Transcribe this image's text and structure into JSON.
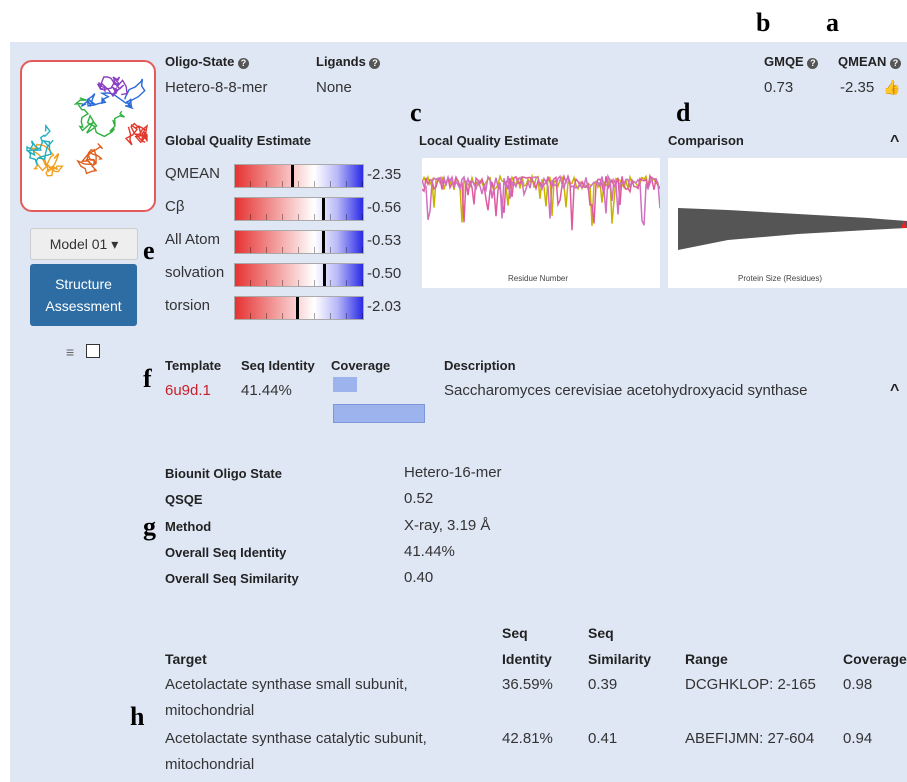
{
  "annotations": [
    "a",
    "b",
    "c",
    "d",
    "e",
    "f",
    "g",
    "h"
  ],
  "model_summary": {
    "oligo_state_label": "Oligo-State",
    "oligo_state": "Hetero-8-8-mer",
    "ligands_label": "Ligands",
    "ligands": "None",
    "gmqe_label": "GMQE",
    "gmqe": "0.73",
    "qmean_label": "QMEAN",
    "qmean": "-2.35"
  },
  "global_quality": {
    "title": "Global Quality Estimate",
    "rows": [
      {
        "name": "QMEAN",
        "value": "-2.35"
      },
      {
        "name": "Cβ",
        "value": "-0.56"
      },
      {
        "name": "All Atom",
        "value": "-0.53"
      },
      {
        "name": "solvation",
        "value": "-0.50"
      },
      {
        "name": "torsion",
        "value": "-2.03"
      }
    ]
  },
  "local_quality": {
    "title": "Local Quality Estimate",
    "x_label": "Residue Number"
  },
  "comparison": {
    "title": "Comparison",
    "x_label": "Protein Size (Residues)"
  },
  "sidebar": {
    "model_button": "Model 01",
    "assessment_button": "Structure Assessment"
  },
  "template": {
    "headers": [
      "Template",
      "Seq Identity",
      "Coverage",
      "Description"
    ],
    "id": "6u9d.1",
    "seq_identity": "41.44%",
    "description": "Saccharomyces cerevisiae acetohydroxyacid synthase"
  },
  "details": {
    "rows": [
      [
        "Biounit Oligo State",
        "Hetero-16-mer"
      ],
      [
        "QSQE",
        "0.52"
      ],
      [
        "Method",
        "X-ray, 3.19 Å"
      ],
      [
        "Overall Seq Identity",
        "41.44%"
      ],
      [
        "Overall Seq Similarity",
        "0.40"
      ]
    ]
  },
  "targets": {
    "headers": [
      [
        "Target"
      ],
      [
        "Seq",
        "Identity"
      ],
      [
        "Seq",
        "Similarity"
      ],
      [
        "Range"
      ],
      [
        "Coverage"
      ]
    ],
    "rows": [
      [
        [
          "Acetolactate synthase small subunit,",
          "mitochondrial"
        ],
        "36.59%",
        "0.39",
        "DCGHKLOP: 2-165",
        "0.98"
      ],
      [
        [
          "Acetolactate synthase catalytic subunit,",
          "mitochondrial"
        ],
        "42.81%",
        "0.41",
        "ABEFIJMN: 27-604",
        "0.94"
      ]
    ]
  }
}
